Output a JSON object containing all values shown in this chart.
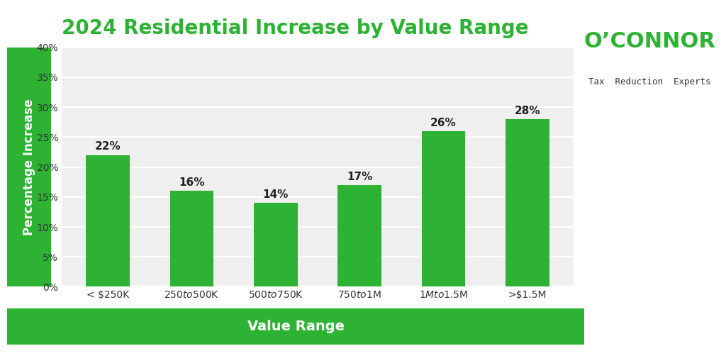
{
  "title": "2024 Residential Increase by Value Range",
  "title_color": "#2db233",
  "title_fontsize": 20,
  "categories": [
    "< $250K",
    "$250 to $500K",
    "$500 to $750K",
    "$750 to $1M",
    "$1M to $1.5M",
    ">$1.5M"
  ],
  "values": [
    22,
    16,
    14,
    17,
    26,
    28
  ],
  "bar_color": "#2db233",
  "ylabel": "Percentage Increase",
  "xlabel": "Value Range",
  "xlabel_color": "#ffffff",
  "xlabel_bg_color": "#2db233",
  "ylim": [
    0,
    40
  ],
  "yticks": [
    0,
    5,
    10,
    15,
    20,
    25,
    30,
    35,
    40
  ],
  "ytick_labels": [
    "0%",
    "5%",
    "10%",
    "15%",
    "20%",
    "25%",
    "30%",
    "35%",
    "40%"
  ],
  "background_color": "#ffffff",
  "plot_bg_color": "#efefef",
  "grid_color": "#ffffff",
  "tick_fontsize": 10,
  "ylabel_fontsize": 12,
  "bar_label_fontsize": 11,
  "oconnor_text": "O’CONNOR",
  "oconnor_sub": "Tax  Reduction  Experts",
  "oconnor_color": "#2db233",
  "oconnor_sub_color": "#333333"
}
